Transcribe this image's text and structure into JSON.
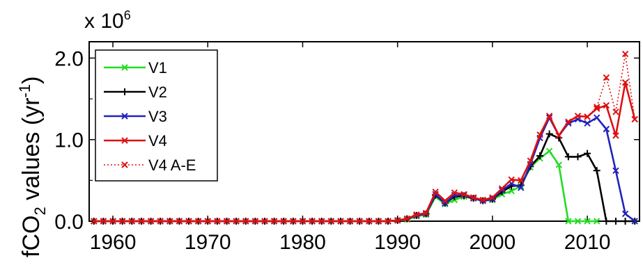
{
  "chart_data": {
    "type": "line",
    "ylabel": "fCO2 values (yr-1)",
    "ylabel_parts": {
      "main": "fCO",
      "sub": "2",
      "mid": " values (yr",
      "sup": "-1",
      "end": ")"
    },
    "multiplier": {
      "base": "x 10",
      "exp": "6"
    },
    "xlim": [
      1957.5,
      2015.5
    ],
    "ylim": [
      0,
      2.2
    ],
    "xticks": [
      "1960",
      "1970",
      "1980",
      "1990",
      "2000",
      "2010"
    ],
    "yticks": [
      "0.0",
      "1.0",
      "2.0"
    ],
    "grid": false,
    "legend_position": "upper-left",
    "series": [
      {
        "name": "V1",
        "color": "#22dd22",
        "style": "solid",
        "marker": "x",
        "x": [
          1958,
          1959,
          1960,
          1961,
          1962,
          1963,
          1964,
          1965,
          1966,
          1967,
          1968,
          1969,
          1970,
          1971,
          1972,
          1973,
          1974,
          1975,
          1976,
          1977,
          1978,
          1979,
          1980,
          1981,
          1982,
          1983,
          1984,
          1985,
          1986,
          1987,
          1988,
          1989,
          1990,
          1991,
          1992,
          1993,
          1994,
          1995,
          1996,
          1997,
          1998,
          1999,
          2000,
          2001,
          2002,
          2003,
          2004,
          2005,
          2006,
          2007,
          2008,
          2009,
          2010,
          2011
        ],
        "y": [
          0,
          0,
          0,
          0,
          0,
          0,
          0,
          0,
          0,
          0,
          0,
          0,
          0,
          0,
          0,
          0,
          0,
          0,
          0,
          0,
          0,
          0,
          0,
          0,
          0,
          0,
          0,
          0,
          0,
          0,
          0,
          0,
          0.01,
          0.02,
          0.06,
          0.08,
          0.3,
          0.21,
          0.26,
          0.3,
          0.28,
          0.25,
          0.26,
          0.33,
          0.37,
          0.43,
          0.66,
          0.77,
          0.86,
          0.69,
          0,
          0,
          0,
          0
        ]
      },
      {
        "name": "V2",
        "color": "#000000",
        "style": "solid",
        "marker": "+",
        "x": [
          1958,
          1959,
          1960,
          1961,
          1962,
          1963,
          1964,
          1965,
          1966,
          1967,
          1968,
          1969,
          1970,
          1971,
          1972,
          1973,
          1974,
          1975,
          1976,
          1977,
          1978,
          1979,
          1980,
          1981,
          1982,
          1983,
          1984,
          1985,
          1986,
          1987,
          1988,
          1989,
          1990,
          1991,
          1992,
          1993,
          1994,
          1995,
          1996,
          1997,
          1998,
          1999,
          2000,
          2001,
          2002,
          2003,
          2004,
          2005,
          2006,
          2007,
          2008,
          2009,
          2010,
          2011,
          2012,
          2013,
          2014,
          2015
        ],
        "y": [
          0,
          0,
          0,
          0,
          0,
          0,
          0,
          0,
          0,
          0,
          0,
          0,
          0,
          0,
          0,
          0,
          0,
          0,
          0,
          0,
          0,
          0,
          0,
          0,
          0,
          0,
          0,
          0,
          0,
          0,
          0,
          0,
          0.01,
          0.03,
          0.07,
          0.09,
          0.32,
          0.22,
          0.3,
          0.31,
          0.28,
          0.25,
          0.27,
          0.36,
          0.43,
          0.44,
          0.67,
          0.8,
          1.07,
          1.02,
          0.79,
          0.79,
          0.83,
          0.62,
          0,
          0,
          0,
          0
        ]
      },
      {
        "name": "V3",
        "color": "#2222bb",
        "style": "solid",
        "marker": "x",
        "x": [
          1958,
          1959,
          1960,
          1961,
          1962,
          1963,
          1964,
          1965,
          1966,
          1967,
          1968,
          1969,
          1970,
          1971,
          1972,
          1973,
          1974,
          1975,
          1976,
          1977,
          1978,
          1979,
          1980,
          1981,
          1982,
          1983,
          1984,
          1985,
          1986,
          1987,
          1988,
          1989,
          1990,
          1991,
          1992,
          1993,
          1994,
          1995,
          1996,
          1997,
          1998,
          1999,
          2000,
          2001,
          2002,
          2003,
          2004,
          2005,
          2006,
          2007,
          2008,
          2009,
          2010,
          2011,
          2012,
          2013,
          2014,
          2015
        ],
        "y": [
          0,
          0,
          0,
          0,
          0,
          0,
          0,
          0,
          0,
          0,
          0,
          0,
          0,
          0,
          0,
          0,
          0,
          0,
          0,
          0,
          0,
          0,
          0,
          0,
          0,
          0,
          0,
          0,
          0,
          0,
          0,
          0,
          0.01,
          0.03,
          0.07,
          0.09,
          0.33,
          0.22,
          0.32,
          0.32,
          0.28,
          0.25,
          0.27,
          0.38,
          0.46,
          0.41,
          0.7,
          1.02,
          1.27,
          1.05,
          1.2,
          1.25,
          1.2,
          1.27,
          1.13,
          0.62,
          0.09,
          0
        ]
      },
      {
        "name": "V4",
        "color": "#dd1111",
        "style": "solid",
        "marker": "x",
        "x": [
          1958,
          1959,
          1960,
          1961,
          1962,
          1963,
          1964,
          1965,
          1966,
          1967,
          1968,
          1969,
          1970,
          1971,
          1972,
          1973,
          1974,
          1975,
          1976,
          1977,
          1978,
          1979,
          1980,
          1981,
          1982,
          1983,
          1984,
          1985,
          1986,
          1987,
          1988,
          1989,
          1990,
          1991,
          1992,
          1993,
          1994,
          1995,
          1996,
          1997,
          1998,
          1999,
          2000,
          2001,
          2002,
          2003,
          2004,
          2005,
          2006,
          2007,
          2008,
          2009,
          2010,
          2011,
          2012,
          2013,
          2014,
          2015
        ],
        "y": [
          0,
          0,
          0,
          0,
          0,
          0,
          0,
          0,
          0,
          0,
          0,
          0,
          0,
          0,
          0,
          0,
          0,
          0,
          0,
          0,
          0,
          0,
          0,
          0,
          0,
          0,
          0,
          0,
          0,
          0,
          0,
          0,
          0.01,
          0.03,
          0.08,
          0.1,
          0.36,
          0.25,
          0.35,
          0.33,
          0.29,
          0.26,
          0.29,
          0.4,
          0.51,
          0.5,
          0.74,
          1.06,
          1.29,
          1.05,
          1.22,
          1.29,
          1.28,
          1.38,
          1.42,
          1.05,
          1.7,
          1.25
        ]
      },
      {
        "name": "V4 A-E",
        "color": "#dd1111",
        "style": "dotted",
        "marker": "x",
        "x": [
          2010,
          2011,
          2012,
          2013,
          2014,
          2015
        ],
        "y": [
          1.28,
          1.4,
          1.76,
          1.34,
          2.05,
          1.25
        ]
      }
    ]
  }
}
